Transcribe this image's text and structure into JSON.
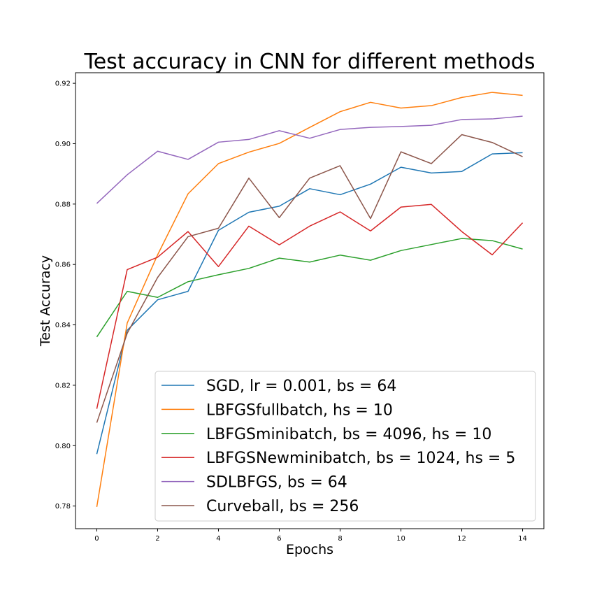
{
  "chart_data": {
    "type": "line",
    "title": "Test accuracy in CNN for different methods",
    "xlabel": "Epochs",
    "ylabel": "Test Accuracy",
    "xlim": [
      -0.7,
      14.7
    ],
    "ylim": [
      0.7725,
      0.9235
    ],
    "xticks": [
      0,
      2,
      4,
      6,
      8,
      10,
      12,
      14
    ],
    "xtick_labels": [
      "0",
      "2",
      "4",
      "6",
      "8",
      "10",
      "12",
      "14"
    ],
    "yticks": [
      0.78,
      0.8,
      0.82,
      0.84,
      0.86,
      0.88,
      0.9,
      0.92
    ],
    "ytick_labels": [
      "0.78",
      "0.80",
      "0.82",
      "0.84",
      "0.86",
      "0.88",
      "0.90",
      "0.92"
    ],
    "grid": false,
    "legend_position": "lower right",
    "x": [
      0,
      1,
      2,
      3,
      4,
      5,
      6,
      7,
      8,
      9,
      10,
      11,
      12,
      13,
      14
    ],
    "series": [
      {
        "name": "SGD, lr = 0.001, bs = 64",
        "color": "#1f77b4",
        "values": [
          0.7972,
          0.8382,
          0.8483,
          0.8511,
          0.8713,
          0.8773,
          0.8793,
          0.8851,
          0.8831,
          0.8866,
          0.8922,
          0.8903,
          0.8908,
          0.8966,
          0.897
        ]
      },
      {
        "name": "LBFGSfullbatch, hs = 10",
        "color": "#ff7f0e",
        "values": [
          0.7797,
          0.8406,
          0.8632,
          0.8834,
          0.8934,
          0.8972,
          0.9001,
          0.9054,
          0.9106,
          0.9137,
          0.9118,
          0.9126,
          0.9153,
          0.917,
          0.916
        ]
      },
      {
        "name": "LBFGSminibatch, bs = 4096, hs = 10",
        "color": "#2ca02c",
        "values": [
          0.836,
          0.8511,
          0.8491,
          0.8543,
          0.8566,
          0.8587,
          0.8621,
          0.8608,
          0.8631,
          0.8614,
          0.8646,
          0.8666,
          0.8686,
          0.8679,
          0.8651
        ]
      },
      {
        "name": "LBFGSNewminibatch, bs = 1024, hs = 5",
        "color": "#d62728",
        "values": [
          0.8122,
          0.8583,
          0.8624,
          0.8709,
          0.8593,
          0.8727,
          0.8665,
          0.8727,
          0.8774,
          0.8711,
          0.879,
          0.8799,
          0.8709,
          0.8632,
          0.8738
        ]
      },
      {
        "name": "SDLBFGS, bs = 64",
        "color": "#9467bd",
        "values": [
          0.8802,
          0.8897,
          0.8975,
          0.8948,
          0.9005,
          0.9014,
          0.9043,
          0.9018,
          0.9047,
          0.9054,
          0.9057,
          0.9061,
          0.908,
          0.9082,
          0.9091
        ]
      },
      {
        "name": "Curveball, bs = 256",
        "color": "#8c564b",
        "values": [
          0.8076,
          0.8372,
          0.8557,
          0.8692,
          0.872,
          0.8886,
          0.8755,
          0.8886,
          0.8927,
          0.8752,
          0.8973,
          0.8934,
          0.903,
          0.9004,
          0.8957
        ]
      }
    ]
  }
}
